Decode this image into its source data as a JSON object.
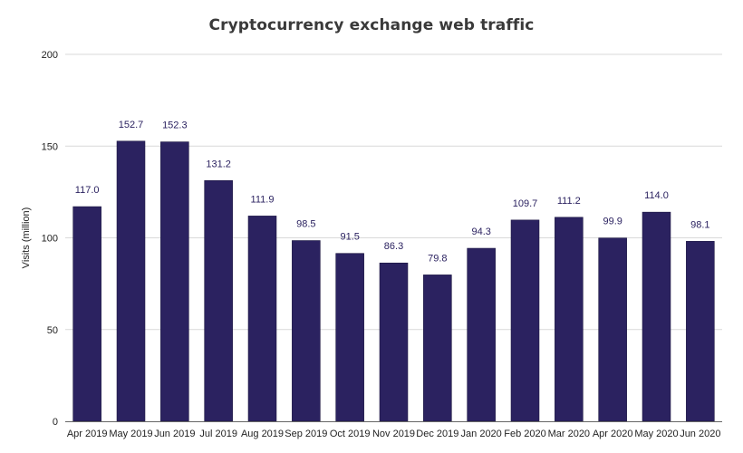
{
  "chart_data": {
    "type": "bar",
    "title": "Cryptocurrency exchange web traffic",
    "xlabel": "",
    "ylabel": "Visits (million)",
    "ylim": [
      0,
      200
    ],
    "yticks": [
      0,
      50,
      100,
      150,
      200
    ],
    "grid": true,
    "categories": [
      "Apr 2019",
      "May 2019",
      "Jun 2019",
      "Jul 2019",
      "Aug 2019",
      "Sep 2019",
      "Oct 2019",
      "Nov 2019",
      "Dec 2019",
      "Jan 2020",
      "Feb 2020",
      "Mar 2020",
      "Apr 2020",
      "May 2020",
      "Jun 2020"
    ],
    "values": [
      117.0,
      152.7,
      152.3,
      131.2,
      111.9,
      98.5,
      91.5,
      86.3,
      79.8,
      94.3,
      109.7,
      111.2,
      99.9,
      114.0,
      98.1
    ],
    "data_labels": [
      "117.0",
      "152.7",
      "152.3",
      "131.2",
      "111.9",
      "98.5",
      "91.5",
      "86.3",
      "79.8",
      "94.3",
      "109.7",
      "111.2",
      "99.9",
      "114.0",
      "98.1"
    ],
    "colors": {
      "bar": "#2b2260",
      "bar_stroke": "#1a1440",
      "label": "#2b2260",
      "grid": "#d9d9d9",
      "axis": "#666666"
    }
  }
}
